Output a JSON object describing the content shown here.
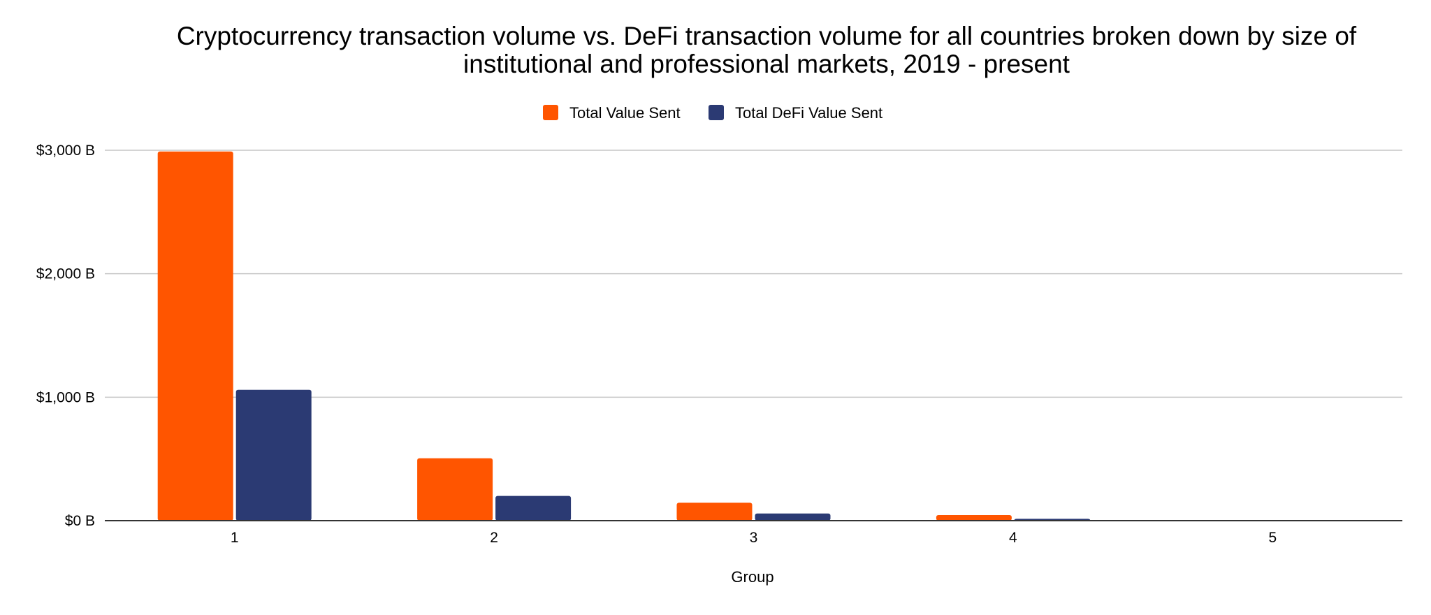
{
  "chart_data": {
    "type": "bar",
    "title_lines": [
      "Cryptocurrency transaction volume vs. DeFi transaction volume for all countries broken down by size of",
      "institutional and professional markets, 2019 - present"
    ],
    "xlabel": "Group",
    "ylabel": "",
    "categories": [
      "1",
      "2",
      "3",
      "4",
      "5"
    ],
    "series": [
      {
        "name": "Total Value Sent",
        "color": "#ff5500",
        "values": [
          2990,
          505,
          145,
          45,
          0
        ]
      },
      {
        "name": "Total DeFi Value Sent",
        "color": "#2b3a73",
        "values": [
          1060,
          200,
          58,
          15,
          0
        ]
      }
    ],
    "ylim": [
      0,
      3000
    ],
    "yticks": [
      {
        "value": 0,
        "label": "$0 B"
      },
      {
        "value": 1000,
        "label": "$1,000 B"
      },
      {
        "value": 2000,
        "label": "$2,000 B"
      },
      {
        "value": 3000,
        "label": "$3,000 B"
      }
    ],
    "grid": true,
    "legend_position": "top-center"
  }
}
